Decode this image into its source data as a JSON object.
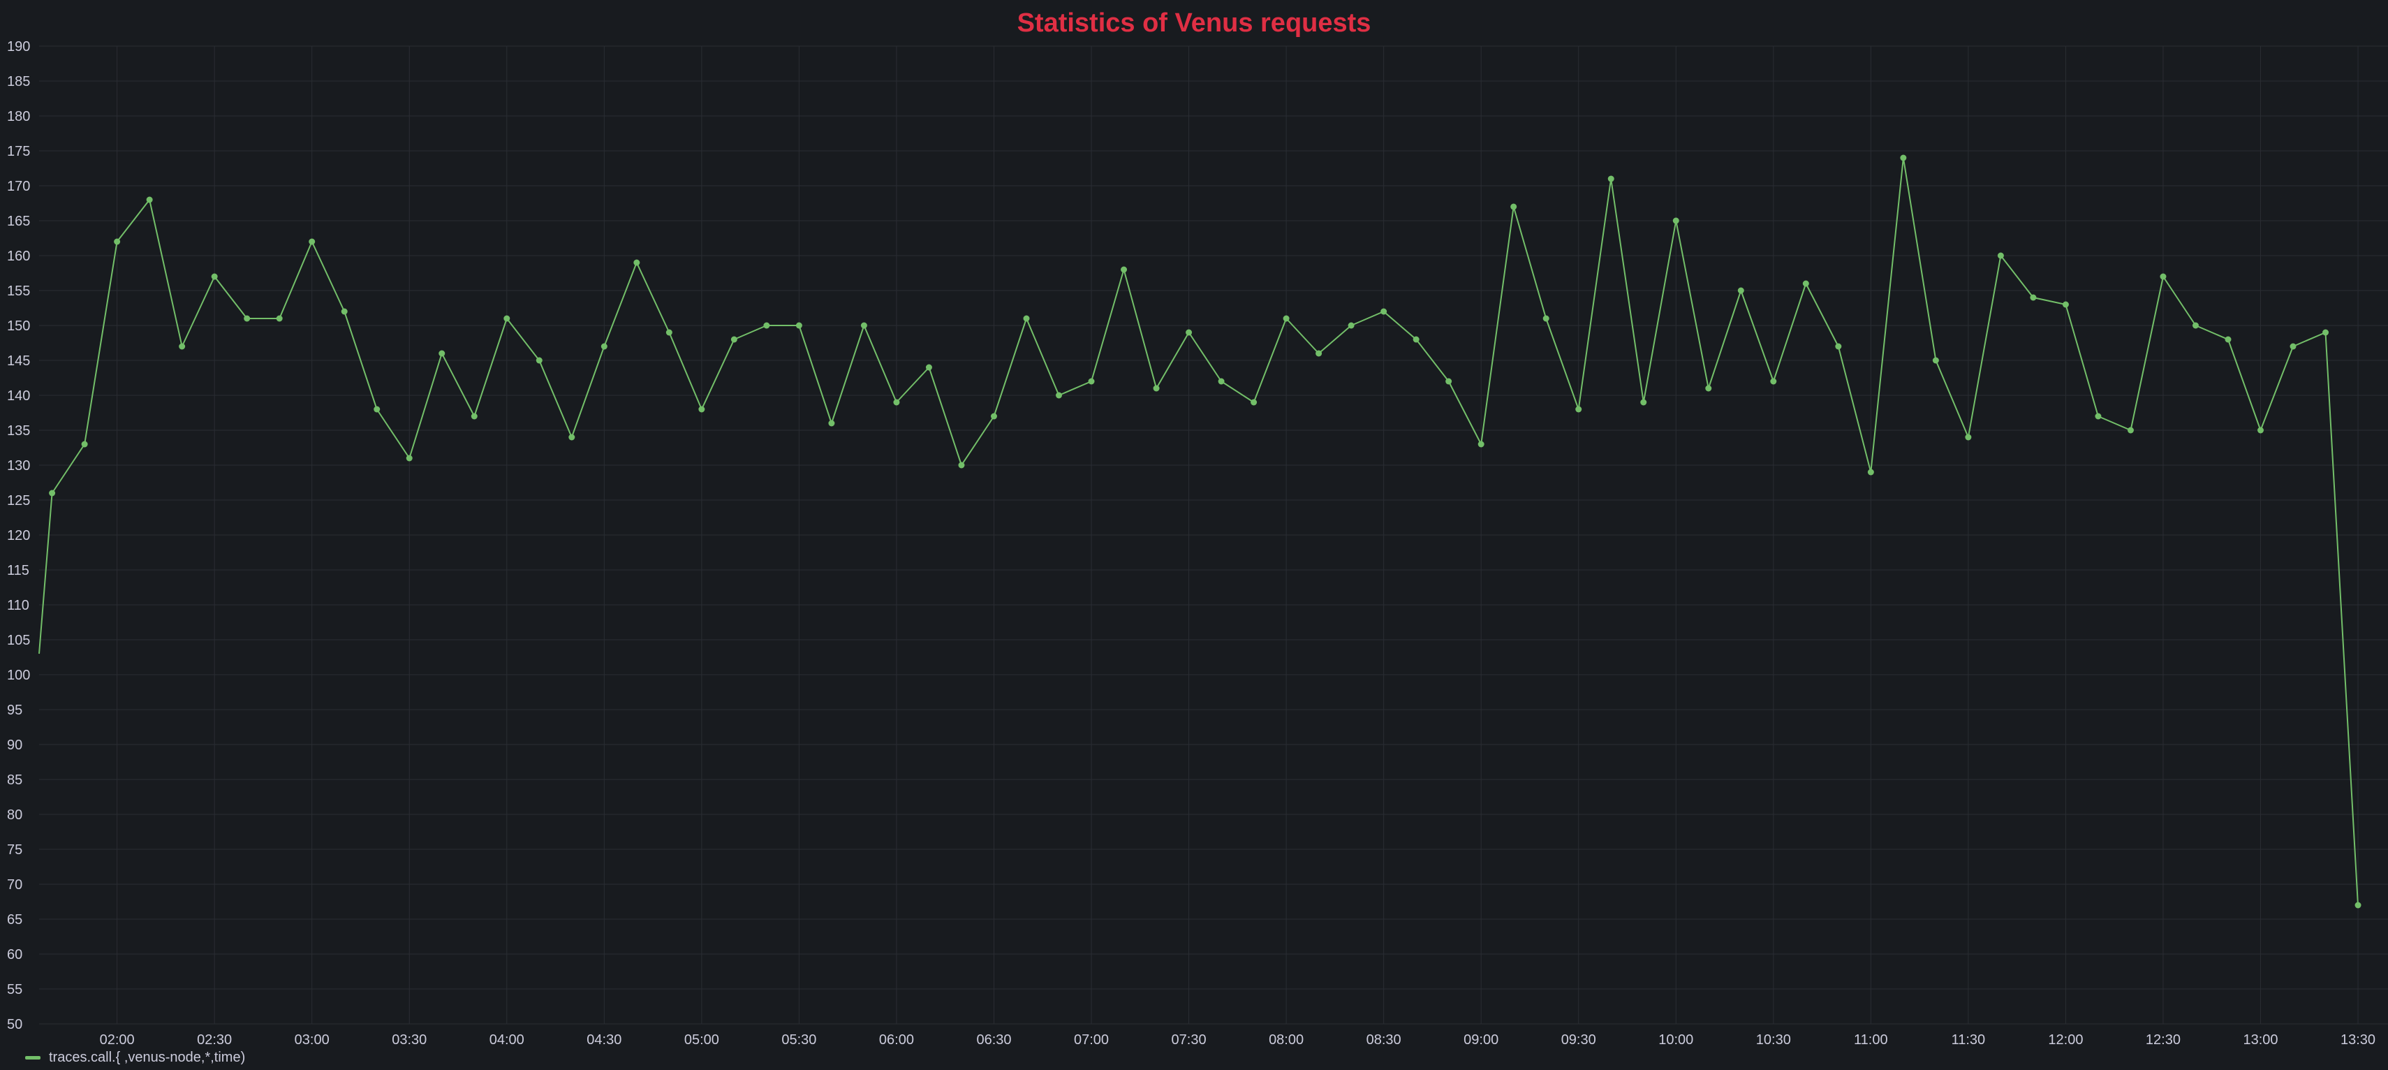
{
  "panel": {
    "title": "Statistics of Venus requests"
  },
  "legend": {
    "label": "traces.call.{            ,venus-node,*,time)"
  },
  "colors": {
    "background": "#181b1f",
    "series": "#73bf69",
    "title": "#e02f44",
    "grid": "#2a2d33",
    "text": "#ccccdc"
  },
  "chart_data": {
    "type": "line",
    "title": "Statistics of Venus requests",
    "xlabel": "",
    "ylabel": "",
    "ylim": [
      50,
      190
    ],
    "y_ticks": [
      50,
      55,
      60,
      65,
      70,
      75,
      80,
      85,
      90,
      95,
      100,
      105,
      110,
      115,
      120,
      125,
      130,
      135,
      140,
      145,
      150,
      155,
      160,
      165,
      170,
      175,
      180,
      185,
      190
    ],
    "xlim": [
      "01:36",
      "13:33"
    ],
    "x_ticks": [
      "02:00",
      "02:30",
      "03:00",
      "03:30",
      "04:00",
      "04:30",
      "05:00",
      "05:30",
      "06:00",
      "06:30",
      "07:00",
      "07:30",
      "08:00",
      "08:30",
      "09:00",
      "09:30",
      "10:00",
      "10:30",
      "11:00",
      "11:30",
      "12:00",
      "12:30",
      "13:00",
      "13:30"
    ],
    "grid": true,
    "legend_position": "bottom-left",
    "series": [
      {
        "name": "traces.call.{            ,venus-node,*,time)",
        "x": [
          "01:36",
          "01:40",
          "01:50",
          "02:00",
          "02:10",
          "02:20",
          "02:30",
          "02:40",
          "02:50",
          "03:00",
          "03:10",
          "03:20",
          "03:30",
          "03:40",
          "03:50",
          "04:00",
          "04:10",
          "04:20",
          "04:30",
          "04:40",
          "04:50",
          "05:00",
          "05:10",
          "05:20",
          "05:30",
          "05:40",
          "05:50",
          "06:00",
          "06:10",
          "06:20",
          "06:30",
          "06:40",
          "06:50",
          "07:00",
          "07:10",
          "07:20",
          "07:30",
          "07:40",
          "07:50",
          "08:00",
          "08:10",
          "08:20",
          "08:30",
          "08:40",
          "08:50",
          "09:00",
          "09:10",
          "09:20",
          "09:30",
          "09:40",
          "09:50",
          "10:00",
          "10:10",
          "10:20",
          "10:30",
          "10:40",
          "10:50",
          "11:00",
          "11:10",
          "11:20",
          "11:30",
          "11:40",
          "11:50",
          "12:00",
          "12:10",
          "12:20",
          "12:30",
          "12:40",
          "12:50",
          "13:00",
          "13:10",
          "13:20",
          "13:30"
        ],
        "values": [
          103,
          126,
          133,
          162,
          168,
          147,
          157,
          151,
          151,
          162,
          152,
          138,
          131,
          146,
          137,
          151,
          145,
          134,
          147,
          159,
          149,
          138,
          148,
          150,
          150,
          136,
          150,
          139,
          144,
          130,
          137,
          151,
          140,
          142,
          158,
          141,
          149,
          142,
          139,
          151,
          146,
          150,
          152,
          148,
          142,
          133,
          167,
          151,
          138,
          171,
          139,
          165,
          141,
          155,
          142,
          156,
          147,
          129,
          174,
          145,
          134,
          160,
          154,
          153,
          137,
          135,
          157,
          150,
          148,
          135,
          147,
          149,
          67
        ]
      }
    ]
  }
}
